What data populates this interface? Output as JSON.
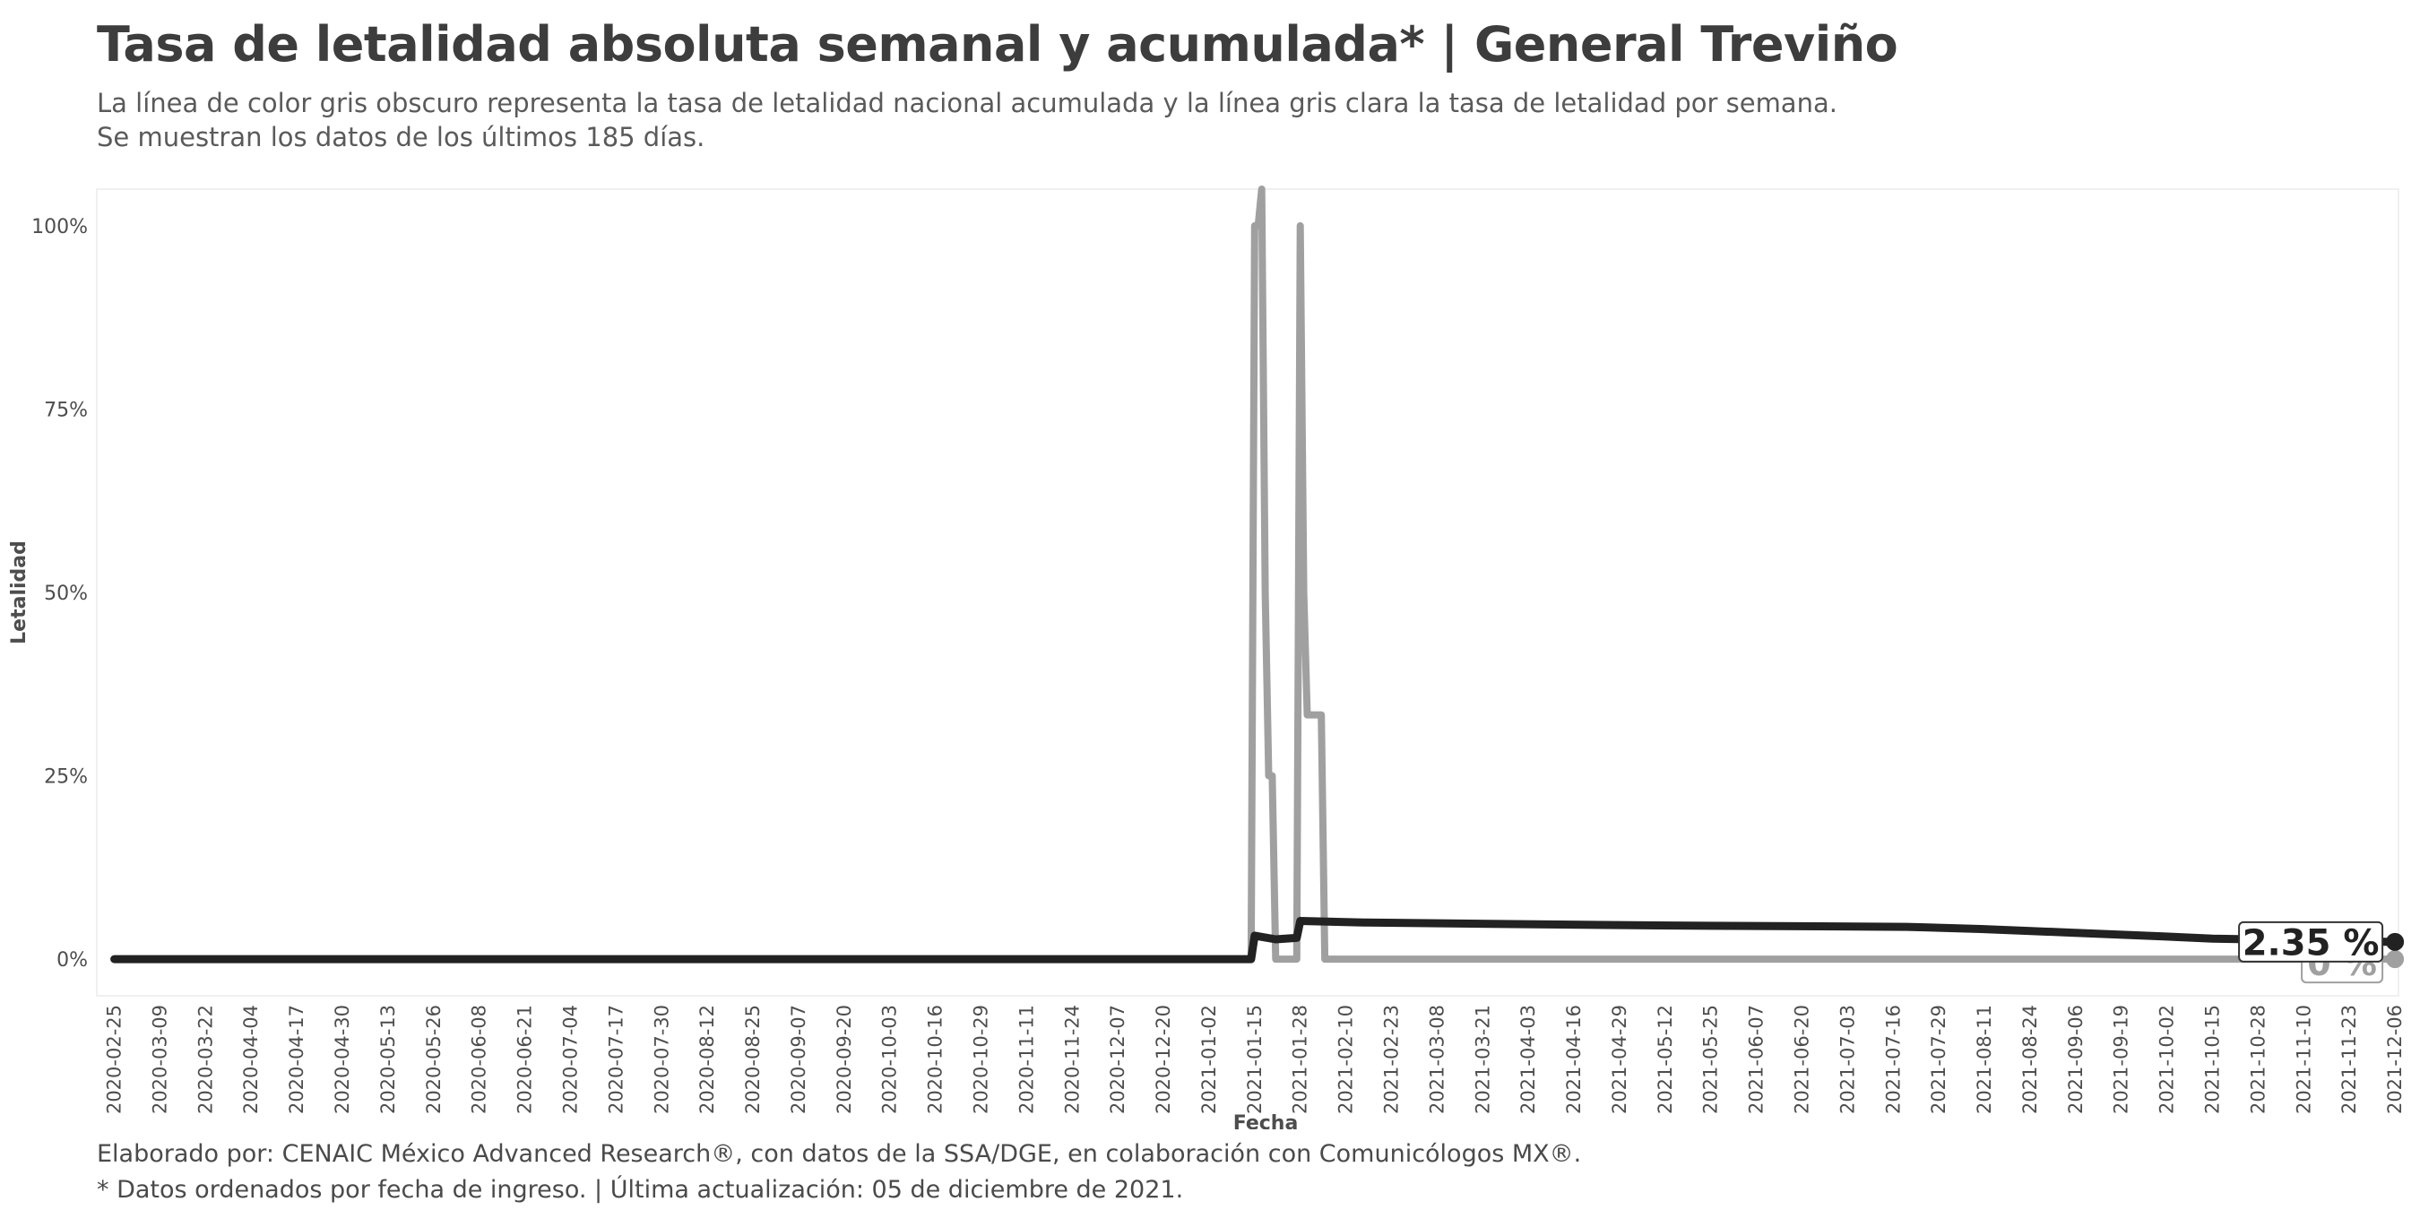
{
  "header": {
    "title": "Tasa de letalidad absoluta semanal y acumulada* | General Treviño",
    "subtitle_lines": [
      "La línea de color gris obscuro representa la tasa de letalidad nacional acumulada y la línea gris clara la tasa de letalidad por semana.",
      "Se muestran los datos de los últimos 185 días."
    ]
  },
  "caption": {
    "lines": [
      "Elaborado por: CENAIC México Advanced Research®, con datos de la SSA/DGE, en colaboración con Comunicólogos MX®.",
      "* Datos ordenados por fecha de ingreso. | Última actualización: 05 de diciembre de 2021."
    ]
  },
  "colors": {
    "weekly": "#a0a0a0",
    "cumulative": "#222222",
    "panel_border": "#ebebeb",
    "label_border": "#333333"
  },
  "chart_data": {
    "type": "line",
    "title": "Tasa de letalidad absoluta semanal y acumulada* | General Treviño",
    "xlabel": "Fecha",
    "ylabel": "Letalidad",
    "x_type": "date",
    "xlim": [
      "2020-02-20",
      "2021-12-07"
    ],
    "ylim": [
      -0.05,
      1.05
    ],
    "grid": false,
    "y_ticks": [
      0,
      0.25,
      0.5,
      0.75,
      1.0
    ],
    "y_tick_labels": [
      "0%",
      "25%",
      "50%",
      "75%",
      "100%"
    ],
    "x_ticks": [
      "2020-02-25",
      "2020-03-09",
      "2020-03-22",
      "2020-04-04",
      "2020-04-17",
      "2020-04-30",
      "2020-05-13",
      "2020-05-26",
      "2020-06-08",
      "2020-06-21",
      "2020-07-04",
      "2020-07-17",
      "2020-07-30",
      "2020-08-12",
      "2020-08-25",
      "2020-09-07",
      "2020-09-20",
      "2020-10-03",
      "2020-10-16",
      "2020-10-29",
      "2020-11-11",
      "2020-11-24",
      "2020-12-07",
      "2020-12-20",
      "2021-01-02",
      "2021-01-15",
      "2021-01-28",
      "2021-02-10",
      "2021-02-23",
      "2021-03-08",
      "2021-03-21",
      "2021-04-03",
      "2021-04-16",
      "2021-04-29",
      "2021-05-12",
      "2021-05-25",
      "2021-06-07",
      "2021-06-20",
      "2021-07-03",
      "2021-07-16",
      "2021-07-29",
      "2021-08-11",
      "2021-08-24",
      "2021-09-06",
      "2021-09-19",
      "2021-10-02",
      "2021-10-15",
      "2021-10-28",
      "2021-11-10",
      "2021-11-23",
      "2021-12-06"
    ],
    "series": [
      {
        "id": "weekly",
        "points": [
          [
            "2020-02-25",
            0
          ],
          [
            "2021-01-14",
            0
          ],
          [
            "2021-01-15",
            1.0
          ],
          [
            "2021-01-16",
            1.0
          ],
          [
            "2021-01-17",
            1.05
          ],
          [
            "2021-01-18",
            0.5
          ],
          [
            "2021-01-19",
            0.25
          ],
          [
            "2021-01-20",
            0.25
          ],
          [
            "2021-01-21",
            0
          ],
          [
            "2021-01-27",
            0
          ],
          [
            "2021-01-28",
            1.0
          ],
          [
            "2021-01-29",
            0.5
          ],
          [
            "2021-01-30",
            0.333
          ],
          [
            "2021-02-03",
            0.333
          ],
          [
            "2021-02-04",
            0
          ],
          [
            "2021-12-06",
            0
          ]
        ]
      },
      {
        "id": "cumulative",
        "points": [
          [
            "2020-02-25",
            0
          ],
          [
            "2021-01-14",
            0
          ],
          [
            "2021-01-15",
            0.032
          ],
          [
            "2021-01-21",
            0.027
          ],
          [
            "2021-01-27",
            0.029
          ],
          [
            "2021-01-28",
            0.052
          ],
          [
            "2021-02-15",
            0.05
          ],
          [
            "2021-03-23",
            0.048
          ],
          [
            "2021-05-10",
            0.046
          ],
          [
            "2021-07-20",
            0.044
          ],
          [
            "2021-08-10",
            0.041
          ],
          [
            "2021-09-05",
            0.036
          ],
          [
            "2021-10-01",
            0.031
          ],
          [
            "2021-10-15",
            0.028
          ],
          [
            "2021-12-06",
            0.0235
          ]
        ]
      }
    ],
    "end_labels": [
      {
        "series": "cumulative",
        "date": "2021-12-06",
        "value": 0.0235,
        "text": "2.35 %"
      },
      {
        "series": "weekly",
        "date": "2021-12-06",
        "value": 0,
        "text": "0 %"
      }
    ]
  }
}
